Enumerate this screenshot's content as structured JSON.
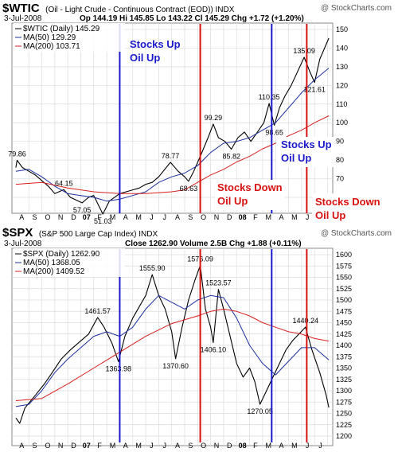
{
  "top_chart": {
    "symbol": "$WTIC",
    "name": "(Oil - Light Crude - Continuous Contract (EOD)) INDX",
    "watermark": "@ StockCharts.com",
    "date": "3-Jul-2008",
    "ohlc_text": "Op 144.19  Hi 145.85  Lo 143.22  Cl 145.29  Chg +1.72 (+1.20%)",
    "legend": [
      "$WTIC (Daily) 145.29",
      "MA(50) 129.29",
      "MA(200) 103.71"
    ],
    "colors": {
      "price": "#000000",
      "ma50": "#1c2f9e",
      "ma200": "#d82020"
    }
  },
  "bottom_chart": {
    "symbol": "$SPX",
    "name": "(S&P 500 Large Cap Index) INDX",
    "watermark": "@ StockCharts.com",
    "date": "3-Jul-2008",
    "ohlc_text": "Close 1262.90  Volume 2.5B  Chg +1.88 (+0.11%)",
    "legend": [
      "$SPX (Daily) 1262.90",
      "MA(50) 1368.05",
      "MA(200) 1409.52"
    ]
  },
  "annotations": {
    "blue_1": [
      "Stocks Up",
      "Oil Up"
    ],
    "blue_2": [
      "Stocks Up",
      "Oil Up"
    ],
    "red_1": [
      "Stocks Down",
      "Oil Up"
    ],
    "red_2": [
      "Stocks Down",
      "Oil Up"
    ],
    "blue_color": "#1a1acc",
    "red_color": "#d81010"
  },
  "x_labels": [
    "A",
    "S",
    "O",
    "N",
    "D",
    "07",
    "F",
    "M",
    "A",
    "M",
    "J",
    "J",
    "A",
    "S",
    "O",
    "N",
    "D",
    "08",
    "F",
    "M",
    "A",
    "M",
    "J",
    "J"
  ],
  "chart_data": [
    {
      "type": "line",
      "title": "$WTIC (Oil - Light Crude - Continuous Contract (EOD)) INDX",
      "ylim": [
        60,
        150
      ],
      "yticks": [
        60,
        70,
        80,
        90,
        100,
        110,
        120,
        130,
        140,
        150
      ],
      "annotated_values": [
        {
          "label": "79.86",
          "value": 79.86,
          "month": -0.9
        },
        {
          "label": "64.15",
          "value": 64.15,
          "month": 2.7
        },
        {
          "label": "57.05",
          "value": 57.05,
          "month": 4.1
        },
        {
          "label": "51.03",
          "value": 51.03,
          "month": 5.7
        },
        {
          "label": "78.77",
          "value": 78.77,
          "month": 10.9
        },
        {
          "label": "68.63",
          "value": 68.63,
          "month": 12.3
        },
        {
          "label": "99.29",
          "value": 99.29,
          "month": 14.2
        },
        {
          "label": "85.82",
          "value": 85.82,
          "month": 15.6
        },
        {
          "label": "110.35",
          "value": 110.35,
          "month": 18.5
        },
        {
          "label": "98.65",
          "value": 98.65,
          "month": 18.9
        },
        {
          "label": "135.09",
          "value": 135.09,
          "month": 21.2
        },
        {
          "label": "121.61",
          "value": 121.61,
          "month": 22.0
        }
      ],
      "series": [
        {
          "name": "$WTIC (Daily)",
          "values": [
            [
              -1,
              76
            ],
            [
              -0.9,
              79.86
            ],
            [
              -0.5,
              76
            ],
            [
              0,
              74
            ],
            [
              0.5,
              72
            ],
            [
              1,
              69
            ],
            [
              1.5,
              66
            ],
            [
              2,
              62
            ],
            [
              2.7,
              64.15
            ],
            [
              3.2,
              60
            ],
            [
              4.1,
              57.05
            ],
            [
              4.6,
              60
            ],
            [
              5,
              61
            ],
            [
              5.7,
              51.03
            ],
            [
              6.2,
              58
            ],
            [
              7,
              62
            ],
            [
              7.5,
              63
            ],
            [
              8,
              64
            ],
            [
              8.5,
              65
            ],
            [
              9,
              67
            ],
            [
              9.5,
              68
            ],
            [
              10,
              71
            ],
            [
              10.9,
              78.77
            ],
            [
              11.5,
              74
            ],
            [
              12,
              71
            ],
            [
              12.3,
              68.63
            ],
            [
              12.7,
              74
            ],
            [
              13.2,
              82
            ],
            [
              13.8,
              92
            ],
            [
              14.2,
              99.29
            ],
            [
              14.6,
              92
            ],
            [
              15.1,
              90
            ],
            [
              15.6,
              85.82
            ],
            [
              16.1,
              92
            ],
            [
              16.6,
              95
            ],
            [
              17.1,
              90
            ],
            [
              17.6,
              95
            ],
            [
              18.1,
              100
            ],
            [
              18.5,
              110.35
            ],
            [
              18.9,
              98.65
            ],
            [
              19.3,
              108
            ],
            [
              19.7,
              114
            ],
            [
              20.2,
              120
            ],
            [
              20.6,
              126
            ],
            [
              21.2,
              135.09
            ],
            [
              21.6,
              128
            ],
            [
              22.0,
              121.61
            ],
            [
              22.4,
              134
            ],
            [
              23.1,
              145.29
            ]
          ]
        },
        {
          "name": "MA(50)",
          "values": [
            [
              -1,
              74
            ],
            [
              0,
              75
            ],
            [
              1,
              71
            ],
            [
              2,
              66
            ],
            [
              3,
              62
            ],
            [
              4,
              61
            ],
            [
              5,
              60
            ],
            [
              6,
              58
            ],
            [
              7,
              59
            ],
            [
              8,
              61
            ],
            [
              9,
              63
            ],
            [
              10,
              68
            ],
            [
              11,
              71
            ],
            [
              12,
              73
            ],
            [
              13,
              77
            ],
            [
              14,
              84
            ],
            [
              15,
              89
            ],
            [
              16,
              90
            ],
            [
              17,
              92
            ],
            [
              18,
              96
            ],
            [
              19,
              100
            ],
            [
              20,
              108
            ],
            [
              21,
              116
            ],
            [
              22,
              123
            ],
            [
              23.1,
              129.29
            ]
          ]
        },
        {
          "name": "MA(200)",
          "values": [
            [
              -1,
              67
            ],
            [
              1,
              68
            ],
            [
              3,
              65
            ],
            [
              5,
              63
            ],
            [
              7,
              62
            ],
            [
              9,
              62
            ],
            [
              11,
              63
            ],
            [
              12,
              64
            ],
            [
              13,
              68
            ],
            [
              14,
              72
            ],
            [
              15,
              75
            ],
            [
              16,
              79
            ],
            [
              17,
              82
            ],
            [
              18,
              86
            ],
            [
              19,
              89
            ],
            [
              20,
              93
            ],
            [
              21,
              96
            ],
            [
              22,
              100
            ],
            [
              23.1,
              103.71
            ]
          ]
        }
      ]
    },
    {
      "type": "line",
      "title": "$SPX (S&P 500 Large Cap Index) INDX",
      "ylim": [
        1200,
        1600
      ],
      "yticks": [
        1200,
        1225,
        1250,
        1275,
        1300,
        1325,
        1350,
        1375,
        1400,
        1425,
        1450,
        1475,
        1500,
        1525,
        1550,
        1575,
        1600
      ],
      "annotated_values": [
        {
          "label": "1461.57",
          "value": 1461.57,
          "month": 5.3
        },
        {
          "label": "1363.98",
          "value": 1363.98,
          "month": 6.9
        },
        {
          "label": "1555.90",
          "value": 1555.9,
          "month": 9.5
        },
        {
          "label": "1370.60",
          "value": 1370.6,
          "month": 11.3
        },
        {
          "label": "1576.09",
          "value": 1576.09,
          "month": 13.2
        },
        {
          "label": "1523.57",
          "value": 1523.57,
          "month": 14.6
        },
        {
          "label": "1406.10",
          "value": 1406.1,
          "month": 14.2
        },
        {
          "label": "1270.05",
          "value": 1270.05,
          "month": 17.8
        },
        {
          "label": "1440.24",
          "value": 1440.24,
          "month": 21.3
        }
      ],
      "series": [
        {
          "name": "$SPX (Daily)",
          "values": [
            [
              -1,
              1240
            ],
            [
              -0.7,
              1228
            ],
            [
              -0.3,
              1262
            ],
            [
              0.5,
              1290
            ],
            [
              1.2,
              1315
            ],
            [
              1.8,
              1340
            ],
            [
              2.5,
              1370
            ],
            [
              3.2,
              1390
            ],
            [
              4,
              1410
            ],
            [
              4.6,
              1425
            ],
            [
              5.3,
              1461.57
            ],
            [
              5.8,
              1440
            ],
            [
              6.4,
              1405
            ],
            [
              6.9,
              1363.98
            ],
            [
              7.4,
              1420
            ],
            [
              8,
              1460
            ],
            [
              8.6,
              1490
            ],
            [
              9,
              1510
            ],
            [
              9.5,
              1555.9
            ],
            [
              10,
              1510
            ],
            [
              10.5,
              1480
            ],
            [
              11,
              1430
            ],
            [
              11.3,
              1370.6
            ],
            [
              11.8,
              1440
            ],
            [
              12.3,
              1500
            ],
            [
              12.8,
              1545
            ],
            [
              13.2,
              1576.09
            ],
            [
              13.6,
              1480
            ],
            [
              14,
              1440
            ],
            [
              14.2,
              1406.1
            ],
            [
              14.6,
              1523.57
            ],
            [
              15,
              1480
            ],
            [
              15.5,
              1420
            ],
            [
              16,
              1360
            ],
            [
              16.5,
              1330
            ],
            [
              17,
              1350
            ],
            [
              17.4,
              1320
            ],
            [
              17.8,
              1270.05
            ],
            [
              18.3,
              1300
            ],
            [
              18.8,
              1330
            ],
            [
              19.3,
              1360
            ],
            [
              19.8,
              1390
            ],
            [
              20.3,
              1410
            ],
            [
              20.8,
              1425
            ],
            [
              21.3,
              1440.24
            ],
            [
              21.8,
              1390
            ],
            [
              22.4,
              1340
            ],
            [
              22.9,
              1290
            ],
            [
              23.1,
              1262.9
            ]
          ]
        },
        {
          "name": "MA(50)",
          "values": [
            [
              -1,
              1265
            ],
            [
              0,
              1270
            ],
            [
              1,
              1300
            ],
            [
              2,
              1340
            ],
            [
              3,
              1370
            ],
            [
              4,
              1395
            ],
            [
              5,
              1420
            ],
            [
              6,
              1430
            ],
            [
              7,
              1420
            ],
            [
              8,
              1440
            ],
            [
              9,
              1480
            ],
            [
              10,
              1510
            ],
            [
              11,
              1495
            ],
            [
              12,
              1480
            ],
            [
              13,
              1500
            ],
            [
              14,
              1510
            ],
            [
              15,
              1505
            ],
            [
              16,
              1460
            ],
            [
              17,
              1400
            ],
            [
              18,
              1360
            ],
            [
              19,
              1335
            ],
            [
              20,
              1365
            ],
            [
              21,
              1395
            ],
            [
              22,
              1395
            ],
            [
              23.1,
              1368.05
            ]
          ]
        },
        {
          "name": "MA(200)",
          "values": [
            [
              -1,
              1278
            ],
            [
              1,
              1283
            ],
            [
              3,
              1315
            ],
            [
              5,
              1350
            ],
            [
              7,
              1385
            ],
            [
              9,
              1420
            ],
            [
              11,
              1448
            ],
            [
              13,
              1465
            ],
            [
              14,
              1475
            ],
            [
              15,
              1480
            ],
            [
              16,
              1475
            ],
            [
              17,
              1465
            ],
            [
              18,
              1450
            ],
            [
              19,
              1440
            ],
            [
              20,
              1430
            ],
            [
              21,
              1425
            ],
            [
              22,
              1415
            ],
            [
              23.1,
              1409.52
            ]
          ]
        }
      ]
    }
  ]
}
